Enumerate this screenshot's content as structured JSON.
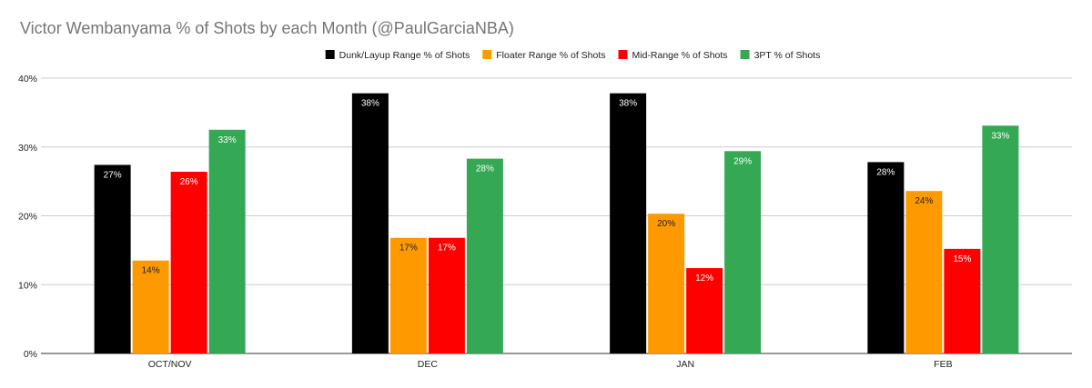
{
  "chart_data": {
    "type": "bar",
    "title": "Victor Wembanyama % of Shots by each Month (@PaulGarciaNBA)",
    "xlabel": "",
    "ylabel": "",
    "categories": [
      "OCT/NOV",
      "DEC",
      "JAN",
      "FEB"
    ],
    "series": [
      {
        "name": "Dunk/Layup Range % of Shots",
        "color": "#000000",
        "label_color": "#ffffff",
        "values": [
          27.4,
          37.8,
          37.8,
          27.8
        ],
        "labels": [
          "27%",
          "38%",
          "38%",
          "28%"
        ]
      },
      {
        "name": "Floater Range % of Shots",
        "color": "#ff9900",
        "label_color": "#222222",
        "values": [
          13.5,
          16.8,
          20.3,
          23.6
        ],
        "labels": [
          "14%",
          "17%",
          "20%",
          "24%"
        ]
      },
      {
        "name": "Mid-Range % of Shots",
        "color": "#ff0000",
        "label_color": "#ffffff",
        "values": [
          26.4,
          16.8,
          12.4,
          15.2
        ],
        "labels": [
          "26%",
          "17%",
          "12%",
          "15%"
        ]
      },
      {
        "name": "3PT % of Shots",
        "color": "#34a853",
        "label_color": "#ffffff",
        "values": [
          32.5,
          28.3,
          29.4,
          33.1
        ],
        "labels": [
          "33%",
          "28%",
          "29%",
          "33%"
        ]
      }
    ],
    "y_ticks": [
      "0%",
      "10%",
      "20%",
      "30%",
      "40%"
    ],
    "y_tick_values": [
      0,
      10,
      20,
      30,
      40
    ],
    "ylim": [
      0,
      40
    ],
    "grid": true,
    "legend_position": "top-center"
  }
}
